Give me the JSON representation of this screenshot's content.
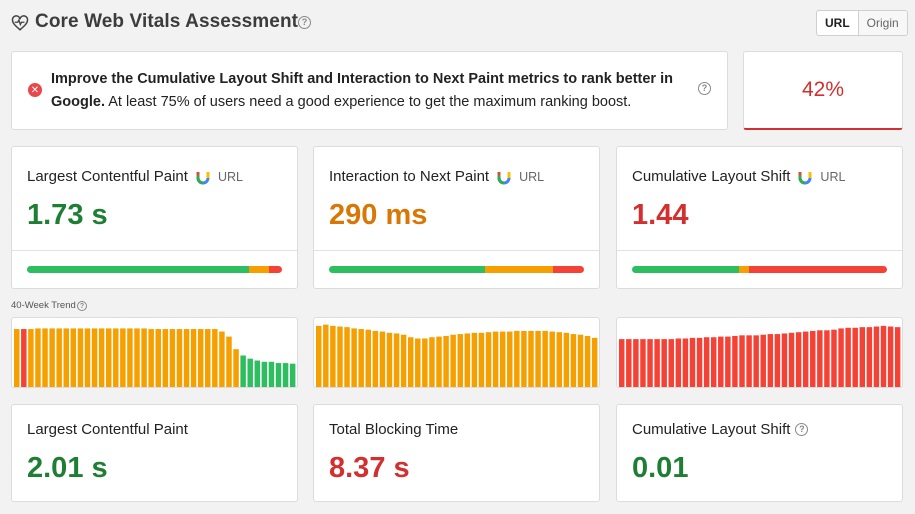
{
  "header": {
    "title": "Core Web Vitals Assessment",
    "help": "?",
    "toggle": {
      "url": "URL",
      "origin": "Origin",
      "selected": "URL"
    }
  },
  "assessment": {
    "status": "failed",
    "bold_text": "Improve the Cumulative Layout Shift and Interaction to Next Paint metrics to rank better in Google.",
    "rest_text": " At least 75% of users need a good experience to get the maximum ranking boost.",
    "help": "?",
    "score": "42%"
  },
  "colors": {
    "good": "#2dbe60",
    "needs_improvement": "#f5a000",
    "poor": "#f44336"
  },
  "field_metrics": [
    {
      "label": "Largest Contentful Paint",
      "tag": "URL",
      "value": "1.73 s",
      "rating": "good",
      "distribution": {
        "good": 0.87,
        "needs_improvement": 0.08,
        "poor": 0.05
      }
    },
    {
      "label": "Interaction to Next Paint",
      "tag": "URL",
      "value": "290 ms",
      "rating": "needs_improvement",
      "distribution": {
        "good": 0.61,
        "needs_improvement": 0.27,
        "poor": 0.12
      }
    },
    {
      "label": "Cumulative Layout Shift",
      "tag": "URL",
      "value": "1.44",
      "rating": "poor",
      "distribution": {
        "good": 0.42,
        "needs_improvement": 0.04,
        "poor": 0.54
      }
    }
  ],
  "trend_label": "40-Week Trend",
  "trends": [
    {
      "heights": [
        0.92,
        0.92,
        0.92,
        0.93,
        0.93,
        0.93,
        0.93,
        0.93,
        0.93,
        0.93,
        0.93,
        0.93,
        0.93,
        0.93,
        0.93,
        0.93,
        0.93,
        0.93,
        0.93,
        0.92,
        0.92,
        0.92,
        0.92,
        0.92,
        0.92,
        0.92,
        0.92,
        0.92,
        0.92,
        0.88,
        0.8,
        0.6,
        0.5,
        0.45,
        0.42,
        0.4,
        0.4,
        0.38,
        0.38,
        0.37
      ],
      "ratings": [
        "n",
        "p",
        "n",
        "n",
        "n",
        "n",
        "n",
        "n",
        "n",
        "n",
        "n",
        "n",
        "n",
        "n",
        "n",
        "n",
        "n",
        "n",
        "n",
        "n",
        "n",
        "n",
        "n",
        "n",
        "n",
        "n",
        "n",
        "n",
        "n",
        "n",
        "n",
        "n",
        "g",
        "g",
        "g",
        "g",
        "g",
        "g",
        "g",
        "g"
      ]
    },
    {
      "heights": [
        0.97,
        0.99,
        0.97,
        0.96,
        0.95,
        0.93,
        0.92,
        0.91,
        0.89,
        0.88,
        0.86,
        0.85,
        0.83,
        0.79,
        0.77,
        0.77,
        0.79,
        0.8,
        0.81,
        0.83,
        0.84,
        0.85,
        0.86,
        0.86,
        0.87,
        0.88,
        0.88,
        0.88,
        0.89,
        0.89,
        0.89,
        0.89,
        0.89,
        0.88,
        0.87,
        0.86,
        0.84,
        0.83,
        0.81,
        0.78
      ],
      "ratings": [
        "n",
        "n",
        "n",
        "n",
        "n",
        "n",
        "n",
        "n",
        "n",
        "n",
        "n",
        "n",
        "n",
        "n",
        "n",
        "n",
        "n",
        "n",
        "n",
        "n",
        "n",
        "n",
        "n",
        "n",
        "n",
        "n",
        "n",
        "n",
        "n",
        "n",
        "n",
        "n",
        "n",
        "n",
        "n",
        "n",
        "n",
        "n",
        "n",
        "n"
      ]
    },
    {
      "heights": [
        0.76,
        0.76,
        0.76,
        0.76,
        0.76,
        0.76,
        0.76,
        0.76,
        0.77,
        0.77,
        0.78,
        0.78,
        0.79,
        0.79,
        0.8,
        0.8,
        0.81,
        0.82,
        0.82,
        0.82,
        0.83,
        0.84,
        0.84,
        0.85,
        0.86,
        0.87,
        0.88,
        0.89,
        0.9,
        0.9,
        0.91,
        0.93,
        0.94,
        0.94,
        0.95,
        0.95,
        0.96,
        0.97,
        0.96,
        0.95
      ],
      "ratings": [
        "p",
        "p",
        "p",
        "p",
        "p",
        "p",
        "p",
        "p",
        "p",
        "p",
        "p",
        "p",
        "p",
        "p",
        "p",
        "p",
        "p",
        "p",
        "p",
        "p",
        "p",
        "p",
        "p",
        "p",
        "p",
        "p",
        "p",
        "p",
        "p",
        "p",
        "p",
        "p",
        "p",
        "p",
        "p",
        "p",
        "p",
        "p",
        "p",
        "p"
      ]
    }
  ],
  "lab_metrics": [
    {
      "label": "Largest Contentful Paint",
      "value": "2.01 s",
      "rating": "good",
      "help": ""
    },
    {
      "label": "Total Blocking Time",
      "value": "8.37 s",
      "rating": "poor",
      "help": ""
    },
    {
      "label": "Cumulative Layout Shift",
      "value": "0.01",
      "rating": "good",
      "help": "?"
    }
  ]
}
